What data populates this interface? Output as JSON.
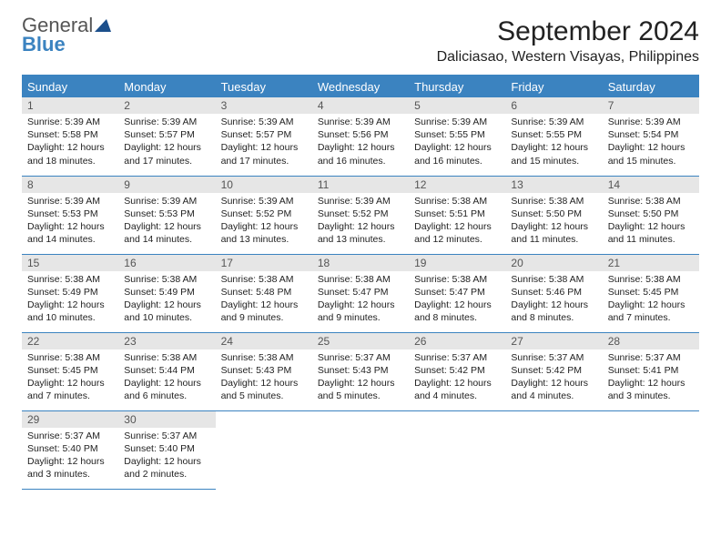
{
  "logo": {
    "word1": "General",
    "word2": "Blue"
  },
  "title": "September 2024",
  "location": "Daliciasao, Western Visayas, Philippines",
  "colors": {
    "accent": "#3b83c0",
    "daynum_bg": "#e6e6e6",
    "text": "#222222",
    "logo_gray": "#555555"
  },
  "weekdays": [
    "Sunday",
    "Monday",
    "Tuesday",
    "Wednesday",
    "Thursday",
    "Friday",
    "Saturday"
  ],
  "days": [
    {
      "n": 1,
      "sr": "5:39 AM",
      "ss": "5:58 PM",
      "dh": 12,
      "dm": 18
    },
    {
      "n": 2,
      "sr": "5:39 AM",
      "ss": "5:57 PM",
      "dh": 12,
      "dm": 17
    },
    {
      "n": 3,
      "sr": "5:39 AM",
      "ss": "5:57 PM",
      "dh": 12,
      "dm": 17
    },
    {
      "n": 4,
      "sr": "5:39 AM",
      "ss": "5:56 PM",
      "dh": 12,
      "dm": 16
    },
    {
      "n": 5,
      "sr": "5:39 AM",
      "ss": "5:55 PM",
      "dh": 12,
      "dm": 16
    },
    {
      "n": 6,
      "sr": "5:39 AM",
      "ss": "5:55 PM",
      "dh": 12,
      "dm": 15
    },
    {
      "n": 7,
      "sr": "5:39 AM",
      "ss": "5:54 PM",
      "dh": 12,
      "dm": 15
    },
    {
      "n": 8,
      "sr": "5:39 AM",
      "ss": "5:53 PM",
      "dh": 12,
      "dm": 14
    },
    {
      "n": 9,
      "sr": "5:39 AM",
      "ss": "5:53 PM",
      "dh": 12,
      "dm": 14
    },
    {
      "n": 10,
      "sr": "5:39 AM",
      "ss": "5:52 PM",
      "dh": 12,
      "dm": 13
    },
    {
      "n": 11,
      "sr": "5:39 AM",
      "ss": "5:52 PM",
      "dh": 12,
      "dm": 13
    },
    {
      "n": 12,
      "sr": "5:38 AM",
      "ss": "5:51 PM",
      "dh": 12,
      "dm": 12
    },
    {
      "n": 13,
      "sr": "5:38 AM",
      "ss": "5:50 PM",
      "dh": 12,
      "dm": 11
    },
    {
      "n": 14,
      "sr": "5:38 AM",
      "ss": "5:50 PM",
      "dh": 12,
      "dm": 11
    },
    {
      "n": 15,
      "sr": "5:38 AM",
      "ss": "5:49 PM",
      "dh": 12,
      "dm": 10
    },
    {
      "n": 16,
      "sr": "5:38 AM",
      "ss": "5:49 PM",
      "dh": 12,
      "dm": 10
    },
    {
      "n": 17,
      "sr": "5:38 AM",
      "ss": "5:48 PM",
      "dh": 12,
      "dm": 9
    },
    {
      "n": 18,
      "sr": "5:38 AM",
      "ss": "5:47 PM",
      "dh": 12,
      "dm": 9
    },
    {
      "n": 19,
      "sr": "5:38 AM",
      "ss": "5:47 PM",
      "dh": 12,
      "dm": 8
    },
    {
      "n": 20,
      "sr": "5:38 AM",
      "ss": "5:46 PM",
      "dh": 12,
      "dm": 8
    },
    {
      "n": 21,
      "sr": "5:38 AM",
      "ss": "5:45 PM",
      "dh": 12,
      "dm": 7
    },
    {
      "n": 22,
      "sr": "5:38 AM",
      "ss": "5:45 PM",
      "dh": 12,
      "dm": 7
    },
    {
      "n": 23,
      "sr": "5:38 AM",
      "ss": "5:44 PM",
      "dh": 12,
      "dm": 6
    },
    {
      "n": 24,
      "sr": "5:38 AM",
      "ss": "5:43 PM",
      "dh": 12,
      "dm": 5
    },
    {
      "n": 25,
      "sr": "5:37 AM",
      "ss": "5:43 PM",
      "dh": 12,
      "dm": 5
    },
    {
      "n": 26,
      "sr": "5:37 AM",
      "ss": "5:42 PM",
      "dh": 12,
      "dm": 4
    },
    {
      "n": 27,
      "sr": "5:37 AM",
      "ss": "5:42 PM",
      "dh": 12,
      "dm": 4
    },
    {
      "n": 28,
      "sr": "5:37 AM",
      "ss": "5:41 PM",
      "dh": 12,
      "dm": 3
    },
    {
      "n": 29,
      "sr": "5:37 AM",
      "ss": "5:40 PM",
      "dh": 12,
      "dm": 3
    },
    {
      "n": 30,
      "sr": "5:37 AM",
      "ss": "5:40 PM",
      "dh": 12,
      "dm": 2
    }
  ],
  "labels": {
    "sunrise": "Sunrise:",
    "sunset": "Sunset:",
    "daylight_prefix": "Daylight:",
    "hours_word": "hours",
    "and_word": "and",
    "minutes_word": "minutes."
  },
  "layout": {
    "first_weekday_index": 0,
    "cols": 7
  }
}
